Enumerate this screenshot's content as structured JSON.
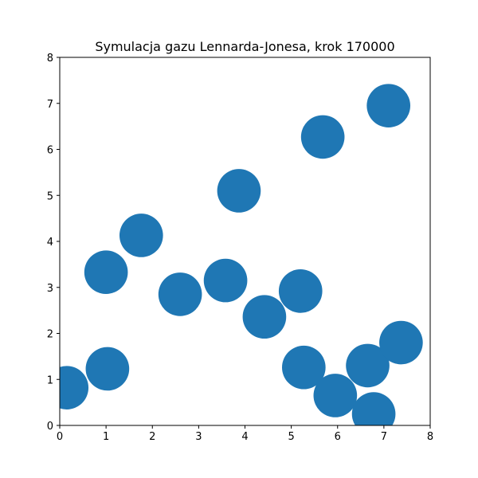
{
  "chart_data": {
    "type": "scatter",
    "title": "Symulacja gazu Lennarda-Jonesa, krok 170000",
    "xlabel": "",
    "ylabel": "",
    "xlim": [
      0,
      8
    ],
    "ylim": [
      0,
      8
    ],
    "xticks": [
      0,
      1,
      2,
      3,
      4,
      5,
      6,
      7,
      8
    ],
    "yticks": [
      0,
      1,
      2,
      3,
      4,
      5,
      6,
      7,
      8
    ],
    "grid": false,
    "marker_color": "#1f77b4",
    "particle_radius": 0.47,
    "points": [
      {
        "x": 0.15,
        "y": 0.82
      },
      {
        "x": 1.03,
        "y": 1.23
      },
      {
        "x": 1.0,
        "y": 3.33
      },
      {
        "x": 1.76,
        "y": 4.13
      },
      {
        "x": 2.6,
        "y": 2.85
      },
      {
        "x": 3.58,
        "y": 3.15
      },
      {
        "x": 3.87,
        "y": 5.1
      },
      {
        "x": 4.42,
        "y": 2.36
      },
      {
        "x": 5.2,
        "y": 2.92
      },
      {
        "x": 5.27,
        "y": 1.26
      },
      {
        "x": 5.68,
        "y": 6.27
      },
      {
        "x": 5.95,
        "y": 0.65
      },
      {
        "x": 6.65,
        "y": 1.3
      },
      {
        "x": 6.78,
        "y": 0.25
      },
      {
        "x": 7.1,
        "y": 6.95
      },
      {
        "x": 7.37,
        "y": 1.8
      }
    ]
  }
}
